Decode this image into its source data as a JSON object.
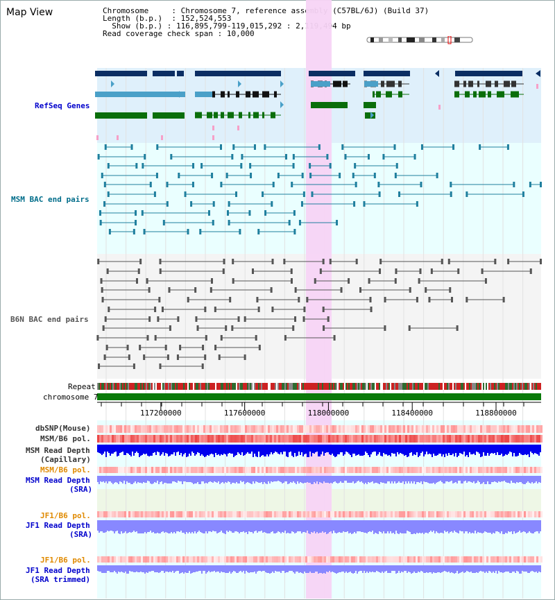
{
  "title": "Map View",
  "info": {
    "chromosome_key": "Chromosome",
    "chromosome_val": "Chromosome 7, reference assembly (C57BL/6J) (Build 37)",
    "length_key": "Length (b.p.)",
    "length_val": "152,524,553",
    "show_key": "Show (b.p.)",
    "show_val": "116,895,799-119,015,292 : 2,119,494 bp",
    "coverage_key": "Read coverage check span",
    "coverage_val": "10,000"
  },
  "tracks": {
    "refseq": "RefSeq Genes",
    "msm_bac": "MSM BAC end pairs",
    "b6n_bac": "B6N BAC end pairs",
    "repeat": "Repeat",
    "chromosome": "chromosome 7",
    "dbsnp": "dbSNP(Mouse)",
    "msm_b6_pol": "MSM/B6 pol.",
    "msm_depth_cap_1": "MSM Read Depth",
    "msm_depth_cap_2": "(Capillary)",
    "msm_b6_pol2": "MSM/B6 pol.",
    "msm_depth_sra_1": "MSM Read Depth",
    "msm_depth_sra_2": "(SRA)",
    "jf1_b6_pol": "JF1/B6 pol.",
    "jf1_depth_sra_1": "JF1 Read Depth",
    "jf1_depth_sra_2": "(SRA)",
    "jf1_b6_pol2": "JF1/B6 pol.",
    "jf1_depth_trim_1": "JF1 Read Depth",
    "jf1_depth_trim_2": "(SRA trimmed)"
  },
  "axis": {
    "ticks": [
      "117200000",
      "117600000",
      "118000000",
      "118400000",
      "118800000"
    ],
    "tick_values": [
      117200000,
      117600000,
      118000000,
      118400000,
      118800000
    ],
    "start": 116895799,
    "end": 119015292
  },
  "highlight": {
    "start": 117895000,
    "end": 118020000
  },
  "colors": {
    "refseq_bg": "#dff0fb",
    "bac_bg": "#eaffff",
    "highlight": "#f7d4f5",
    "navy": "#0b2e63",
    "steel": "#4aa0c8",
    "green": "#0a6e0a",
    "msm_pair": "#1f7f9e",
    "b6n_pair": "#555555",
    "depth_blue": "#0000ee",
    "depth_lilac": "#8888ff",
    "polymorphism_red": "#ee2222"
  }
}
